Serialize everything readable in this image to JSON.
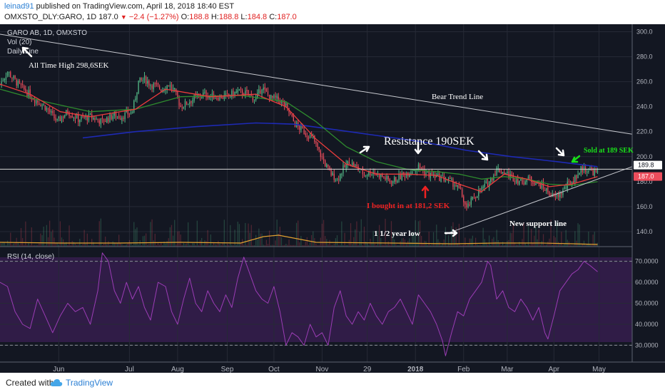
{
  "header": {
    "author": "leinad91",
    "published": "published on TradingView.com, April 18, 2018 18:40 EST",
    "symbol": "OMXSTO_DLY:GARO, 1D",
    "last": "187.0",
    "change": "−2.4 (−1.27%)",
    "open_label": "O:",
    "open": "188.8",
    "high_label": "H:",
    "high": "188.8",
    "low_label": "L:",
    "low": "184.8",
    "close_label": "C:",
    "close": "187.0"
  },
  "legend": {
    "title": "GARO AB, 1D, OMXSTO",
    "vol": "Vol (20)",
    "daily": "Daily Line"
  },
  "footer": {
    "created": "Created with",
    "brand": "TradingView"
  },
  "colors": {
    "background": "#131722",
    "up": "#53b987",
    "down": "#eb4d5c",
    "ma_fast": "#eb3c3c",
    "ma_mid": "#2e8b2e",
    "ma_slow": "#1e2ab5",
    "rsi_line": "#9b3db5",
    "rsi_band": "#3b1f54",
    "green_text": "#19e019",
    "red_text": "#ee2222"
  },
  "chart_data": [
    {
      "type": "candlestick",
      "x_ticks": [
        "Jun",
        "Jul",
        "Aug",
        "Sep",
        "Oct",
        "Nov",
        "29",
        "2018",
        "Feb",
        "Mar",
        "Apr",
        "May"
      ],
      "y_ticks": [
        "140.0",
        "160.0",
        "180.0",
        "200.0",
        "220.0",
        "240.0",
        "260.0",
        "280.0",
        "300.0"
      ],
      "ylim": [
        128,
        306
      ],
      "price_tags": [
        {
          "label": "189.8",
          "value": 189.8
        },
        {
          "label": "187.0",
          "value": 187.0
        }
      ],
      "price_path": [
        [
          0,
          258
        ],
        [
          5,
          268
        ],
        [
          12,
          258
        ],
        [
          22,
          247
        ],
        [
          30,
          240
        ],
        [
          38,
          228
        ],
        [
          45,
          236
        ],
        [
          52,
          230
        ],
        [
          60,
          232
        ],
        [
          68,
          228
        ],
        [
          75,
          233
        ],
        [
          80,
          232
        ],
        [
          88,
          236
        ],
        [
          92,
          260
        ],
        [
          96,
          262
        ],
        [
          100,
          258
        ],
        [
          108,
          254
        ],
        [
          112,
          258
        ],
        [
          116,
          252
        ],
        [
          120,
          240
        ],
        [
          128,
          246
        ],
        [
          135,
          250
        ],
        [
          142,
          248
        ],
        [
          150,
          248
        ],
        [
          158,
          252
        ],
        [
          165,
          250
        ],
        [
          170,
          246
        ],
        [
          174,
          256
        ],
        [
          176,
          252
        ],
        [
          180,
          247
        ],
        [
          185,
          246
        ],
        [
          190,
          240
        ],
        [
          196,
          226
        ],
        [
          202,
          220
        ],
        [
          208,
          214
        ],
        [
          212,
          204
        ],
        [
          216,
          194
        ],
        [
          220,
          186
        ],
        [
          224,
          182
        ],
        [
          228,
          190
        ],
        [
          232,
          196
        ],
        [
          236,
          192
        ],
        [
          242,
          186
        ],
        [
          248,
          188
        ],
        [
          254,
          184
        ],
        [
          260,
          180
        ],
        [
          266,
          184
        ],
        [
          272,
          188
        ],
        [
          278,
          192
        ],
        [
          284,
          186
        ],
        [
          290,
          184
        ],
        [
          296,
          182
        ],
        [
          302,
          178
        ],
        [
          306,
          172
        ],
        [
          310,
          158
        ],
        [
          314,
          166
        ],
        [
          318,
          172
        ],
        [
          322,
          176
        ],
        [
          326,
          182
        ],
        [
          330,
          190
        ],
        [
          334,
          188
        ],
        [
          340,
          184
        ],
        [
          346,
          180
        ],
        [
          352,
          182
        ],
        [
          358,
          178
        ],
        [
          364,
          172
        ],
        [
          368,
          167
        ],
        [
          372,
          170
        ],
        [
          376,
          176
        ],
        [
          380,
          180
        ],
        [
          384,
          186
        ],
        [
          386,
          190
        ],
        [
          390,
          190
        ],
        [
          394,
          188
        ],
        [
          397,
          187
        ]
      ],
      "ma_fast": [
        [
          0,
          258
        ],
        [
          20,
          250
        ],
        [
          40,
          236
        ],
        [
          60,
          232
        ],
        [
          90,
          238
        ],
        [
          110,
          254
        ],
        [
          140,
          248
        ],
        [
          170,
          250
        ],
        [
          190,
          240
        ],
        [
          210,
          214
        ],
        [
          230,
          194
        ],
        [
          250,
          186
        ],
        [
          270,
          186
        ],
        [
          290,
          185
        ],
        [
          305,
          178
        ],
        [
          320,
          172
        ],
        [
          335,
          186
        ],
        [
          350,
          182
        ],
        [
          365,
          176
        ],
        [
          380,
          178
        ],
        [
          397,
          184
        ]
      ],
      "ma_mid": [
        [
          0,
          254
        ],
        [
          30,
          244
        ],
        [
          60,
          236
        ],
        [
          90,
          238
        ],
        [
          120,
          248
        ],
        [
          160,
          249
        ],
        [
          190,
          244
        ],
        [
          210,
          228
        ],
        [
          230,
          208
        ],
        [
          250,
          196
        ],
        [
          270,
          190
        ],
        [
          290,
          188
        ],
        [
          305,
          186
        ],
        [
          320,
          182
        ],
        [
          335,
          184
        ],
        [
          350,
          182
        ],
        [
          365,
          178
        ],
        [
          380,
          177
        ],
        [
          397,
          180
        ]
      ],
      "ma_slow": [
        [
          55,
          215
        ],
        [
          90,
          220
        ],
        [
          130,
          224
        ],
        [
          170,
          227
        ],
        [
          195,
          226
        ],
        [
          220,
          222
        ],
        [
          250,
          217
        ],
        [
          280,
          212
        ],
        [
          310,
          205
        ],
        [
          340,
          200
        ],
        [
          370,
          196
        ],
        [
          397,
          192
        ]
      ],
      "annotations": [
        {
          "text": "All Time High 298,6SEK",
          "value": 285,
          "color": "white"
        },
        {
          "text": "Bear Trend Line",
          "color": "white"
        },
        {
          "text": "Resistance 190SEK",
          "color": "white"
        },
        {
          "text": "I bought in at 181,2 SEK",
          "color": "red"
        },
        {
          "text": "1 1/2 year low",
          "color": "white"
        },
        {
          "text": "New support line",
          "color": "white"
        },
        {
          "text": "Sold at 189 SEK",
          "color": "green"
        }
      ],
      "lines": [
        {
          "name": "Bear Trend Line",
          "from": [
            0,
            298
          ],
          "to": [
            420,
            218
          ]
        },
        {
          "name": "Resistance",
          "value": 190
        },
        {
          "name": "New support line",
          "from": [
            296,
            138
          ],
          "to": [
            420,
            192
          ]
        }
      ]
    },
    {
      "type": "line",
      "title": "RSI (14, close)",
      "y_ticks": [
        "30.0000",
        "40.0000",
        "50.0000",
        "60.0000",
        "70.0000"
      ],
      "ylim": [
        22,
        77
      ],
      "band": [
        30,
        70
      ],
      "values": [
        [
          0,
          60
        ],
        [
          5,
          58
        ],
        [
          10,
          46
        ],
        [
          15,
          40
        ],
        [
          20,
          38
        ],
        [
          25,
          52
        ],
        [
          30,
          44
        ],
        [
          35,
          36
        ],
        [
          40,
          44
        ],
        [
          45,
          50
        ],
        [
          50,
          46
        ],
        [
          55,
          48
        ],
        [
          60,
          40
        ],
        [
          65,
          56
        ],
        [
          68,
          74
        ],
        [
          72,
          70
        ],
        [
          76,
          56
        ],
        [
          80,
          50
        ],
        [
          84,
          60
        ],
        [
          88,
          52
        ],
        [
          92,
          58
        ],
        [
          96,
          48
        ],
        [
          100,
          42
        ],
        [
          105,
          60
        ],
        [
          110,
          58
        ],
        [
          114,
          46
        ],
        [
          118,
          40
        ],
        [
          122,
          52
        ],
        [
          126,
          62
        ],
        [
          130,
          50
        ],
        [
          134,
          46
        ],
        [
          138,
          56
        ],
        [
          142,
          50
        ],
        [
          146,
          46
        ],
        [
          150,
          54
        ],
        [
          154,
          48
        ],
        [
          158,
          62
        ],
        [
          162,
          72
        ],
        [
          166,
          64
        ],
        [
          170,
          56
        ],
        [
          174,
          52
        ],
        [
          178,
          50
        ],
        [
          182,
          58
        ],
        [
          186,
          46
        ],
        [
          190,
          30
        ],
        [
          194,
          36
        ],
        [
          198,
          34
        ],
        [
          202,
          30
        ],
        [
          206,
          40
        ],
        [
          210,
          34
        ],
        [
          214,
          36
        ],
        [
          218,
          30
        ],
        [
          222,
          48
        ],
        [
          226,
          56
        ],
        [
          230,
          44
        ],
        [
          234,
          40
        ],
        [
          238,
          46
        ],
        [
          242,
          42
        ],
        [
          246,
          50
        ],
        [
          250,
          44
        ],
        [
          254,
          40
        ],
        [
          258,
          46
        ],
        [
          262,
          48
        ],
        [
          266,
          52
        ],
        [
          270,
          46
        ],
        [
          274,
          40
        ],
        [
          278,
          54
        ],
        [
          282,
          50
        ],
        [
          286,
          46
        ],
        [
          290,
          40
        ],
        [
          294,
          32
        ],
        [
          296,
          25
        ],
        [
          300,
          36
        ],
        [
          304,
          46
        ],
        [
          308,
          44
        ],
        [
          312,
          52
        ],
        [
          316,
          56
        ],
        [
          320,
          60
        ],
        [
          324,
          70
        ],
        [
          326,
          68
        ],
        [
          330,
          52
        ],
        [
          334,
          56
        ],
        [
          338,
          48
        ],
        [
          342,
          46
        ],
        [
          346,
          52
        ],
        [
          350,
          48
        ],
        [
          354,
          42
        ],
        [
          358,
          48
        ],
        [
          362,
          36
        ],
        [
          364,
          33
        ],
        [
          368,
          44
        ],
        [
          372,
          56
        ],
        [
          376,
          60
        ],
        [
          380,
          64
        ],
        [
          384,
          66
        ],
        [
          388,
          70
        ],
        [
          392,
          68
        ],
        [
          397,
          65
        ]
      ]
    }
  ]
}
